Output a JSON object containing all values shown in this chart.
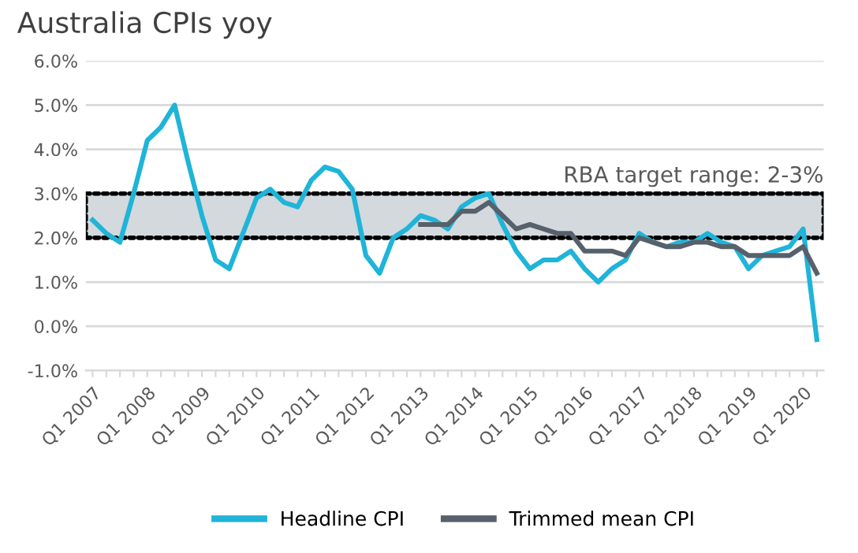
{
  "chart_data": {
    "type": "line",
    "title": "Australia CPIs yoy",
    "categories": [
      "Q1 2007",
      null,
      null,
      null,
      "Q1 2008",
      null,
      null,
      null,
      "Q1 2009",
      null,
      null,
      null,
      "Q1 2010",
      null,
      null,
      null,
      "Q1 2011",
      null,
      null,
      null,
      "Q1 2012",
      null,
      null,
      null,
      "Q1 2013",
      null,
      null,
      null,
      "Q1 2014",
      null,
      null,
      null,
      "Q1 2015",
      null,
      null,
      null,
      "Q1 2016",
      null,
      null,
      null,
      "Q1 2017",
      null,
      null,
      null,
      "Q1 2018",
      null,
      null,
      null,
      "Q1 2019",
      null,
      null,
      null,
      "Q1 2020",
      null
    ],
    "series": [
      {
        "name": "Headline CPI",
        "color": "#1fb4d8",
        "values": [
          2.4,
          2.1,
          1.9,
          3.0,
          4.2,
          4.5,
          5.0,
          3.7,
          2.5,
          1.5,
          1.3,
          2.1,
          2.9,
          3.1,
          2.8,
          2.7,
          3.3,
          3.6,
          3.5,
          3.1,
          1.6,
          1.2,
          2.0,
          2.2,
          2.5,
          2.4,
          2.2,
          2.7,
          2.9,
          3.0,
          2.3,
          1.7,
          1.3,
          1.5,
          1.5,
          1.7,
          1.3,
          1.0,
          1.3,
          1.5,
          2.1,
          1.9,
          1.8,
          1.9,
          1.9,
          2.1,
          1.9,
          1.8,
          1.3,
          1.6,
          1.7,
          1.8,
          2.2,
          -0.3
        ]
      },
      {
        "name": "Trimmed mean CPI",
        "color": "#56616b",
        "values": [
          null,
          null,
          null,
          null,
          null,
          null,
          null,
          null,
          null,
          null,
          null,
          null,
          null,
          null,
          null,
          null,
          null,
          null,
          null,
          null,
          null,
          null,
          null,
          null,
          2.3,
          2.3,
          2.3,
          2.6,
          2.6,
          2.8,
          2.5,
          2.2,
          2.3,
          2.2,
          2.1,
          2.1,
          1.7,
          1.7,
          1.7,
          1.6,
          2.0,
          1.9,
          1.8,
          1.8,
          1.9,
          1.9,
          1.8,
          1.8,
          1.6,
          1.6,
          1.6,
          1.6,
          1.8,
          1.2
        ]
      }
    ],
    "ylim": [
      -1,
      6
    ],
    "yticks": [
      {
        "value": -1,
        "label": "-1.0%"
      },
      {
        "value": 0,
        "label": "0.0%"
      },
      {
        "value": 1,
        "label": "1.0%"
      },
      {
        "value": 2,
        "label": "2.0%"
      },
      {
        "value": 3,
        "label": "3.0%"
      },
      {
        "value": 4,
        "label": "4.0%"
      },
      {
        "value": 5,
        "label": "5.0%"
      },
      {
        "value": 6,
        "label": "6.0%"
      }
    ],
    "bands": [
      {
        "axis": "y",
        "from": 2,
        "to": 3,
        "label": "RBA target range: 2-3%",
        "color": "#d3d9dc"
      }
    ],
    "grid": "y",
    "legend": "bottom",
    "marker": "none",
    "line_style": "solid"
  }
}
